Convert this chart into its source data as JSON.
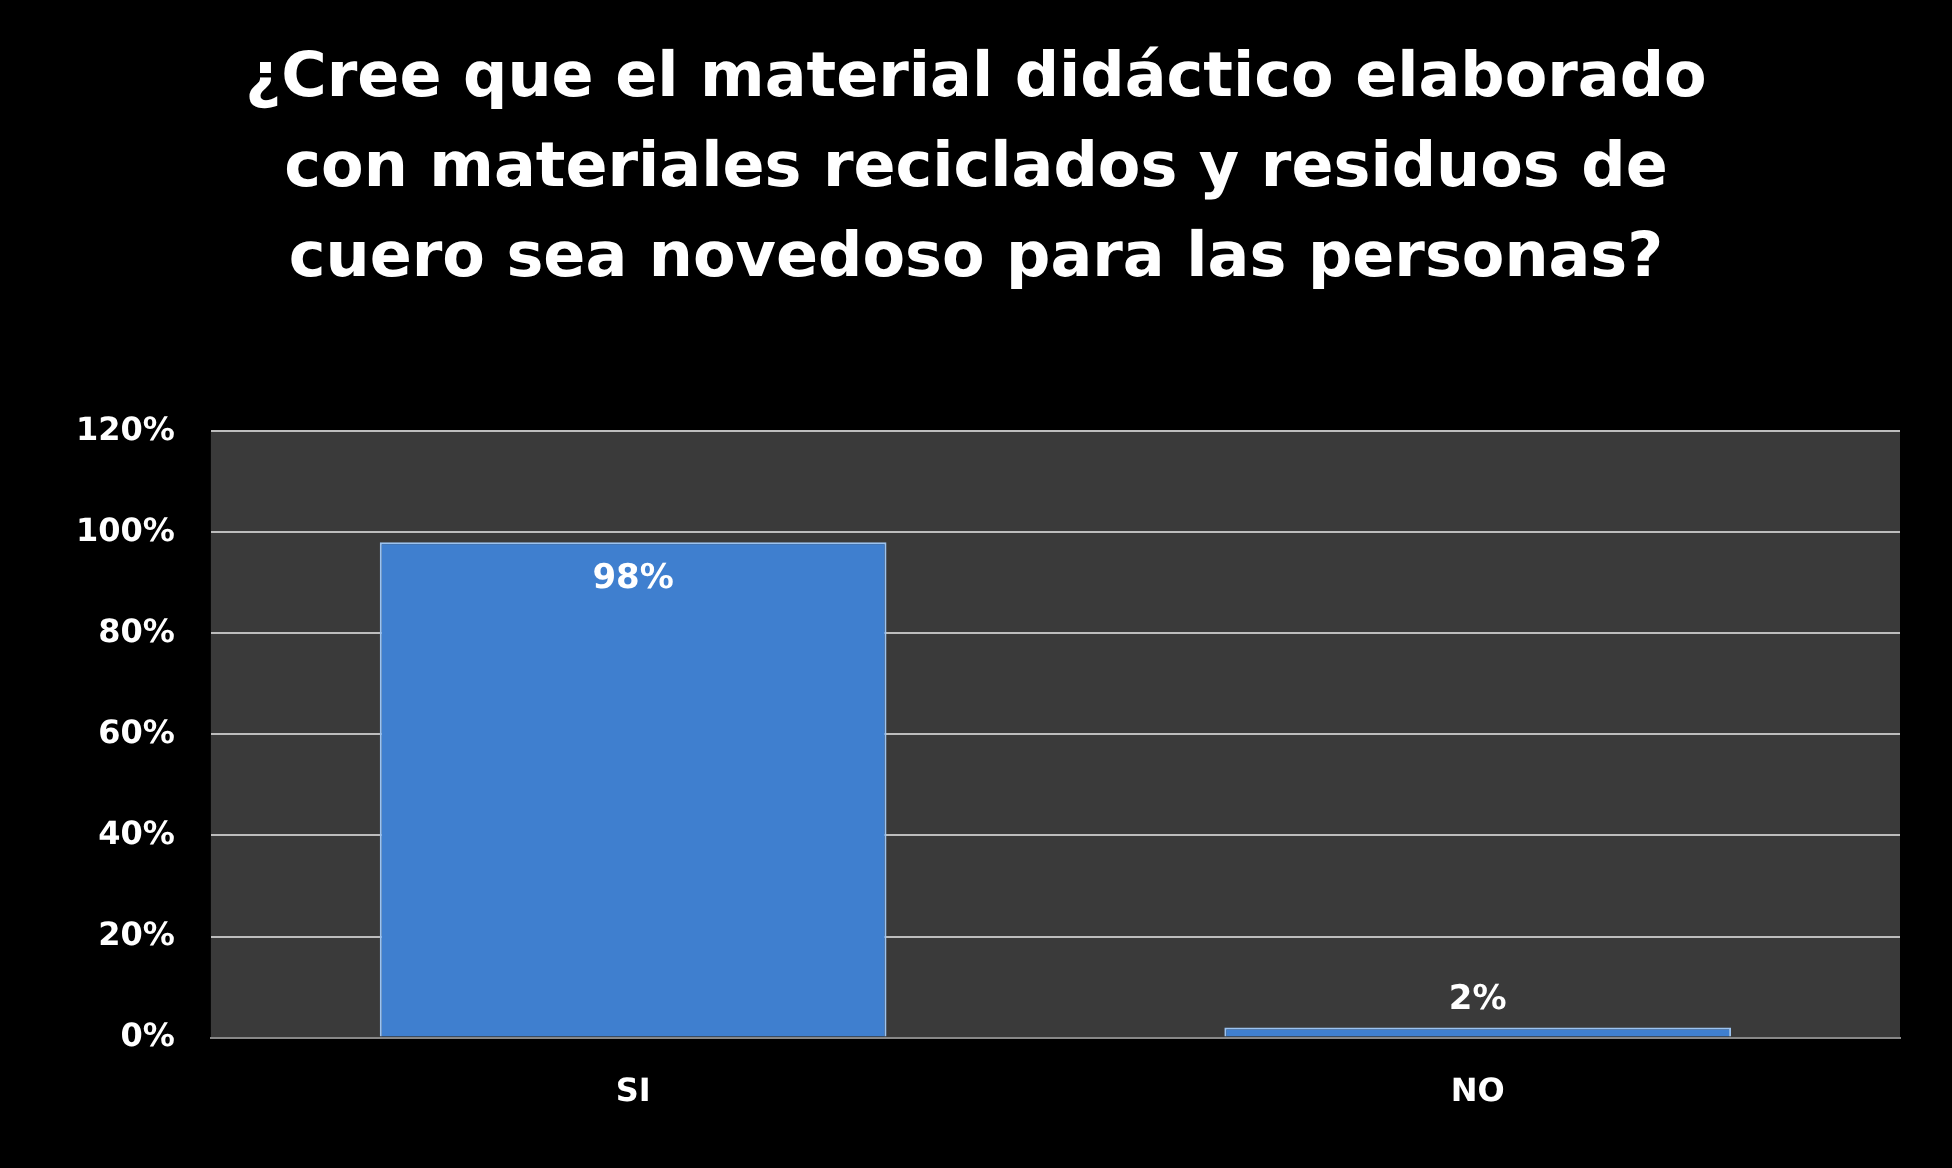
{
  "chart_data": {
    "type": "bar",
    "title": "¿Cree que el material didáctico elaborado con materiales reciclados y residuos de cuero sea novedoso para las personas?",
    "categories": [
      "SI",
      "NO"
    ],
    "values": [
      98,
      2
    ],
    "color": "#3f7fcf",
    "value_labels": [
      "98%",
      "2%"
    ],
    "ylim": [
      0,
      120
    ],
    "yticks": [
      {
        "value": 0,
        "label": "0%"
      },
      {
        "value": 20,
        "label": "20%"
      },
      {
        "value": 40,
        "label": "40%"
      },
      {
        "value": 60,
        "label": "60%"
      },
      {
        "value": 80,
        "label": "80%"
      },
      {
        "value": 100,
        "label": "100%"
      },
      {
        "value": 120,
        "label": "120%"
      }
    ],
    "grid": "y",
    "legend": false
  }
}
